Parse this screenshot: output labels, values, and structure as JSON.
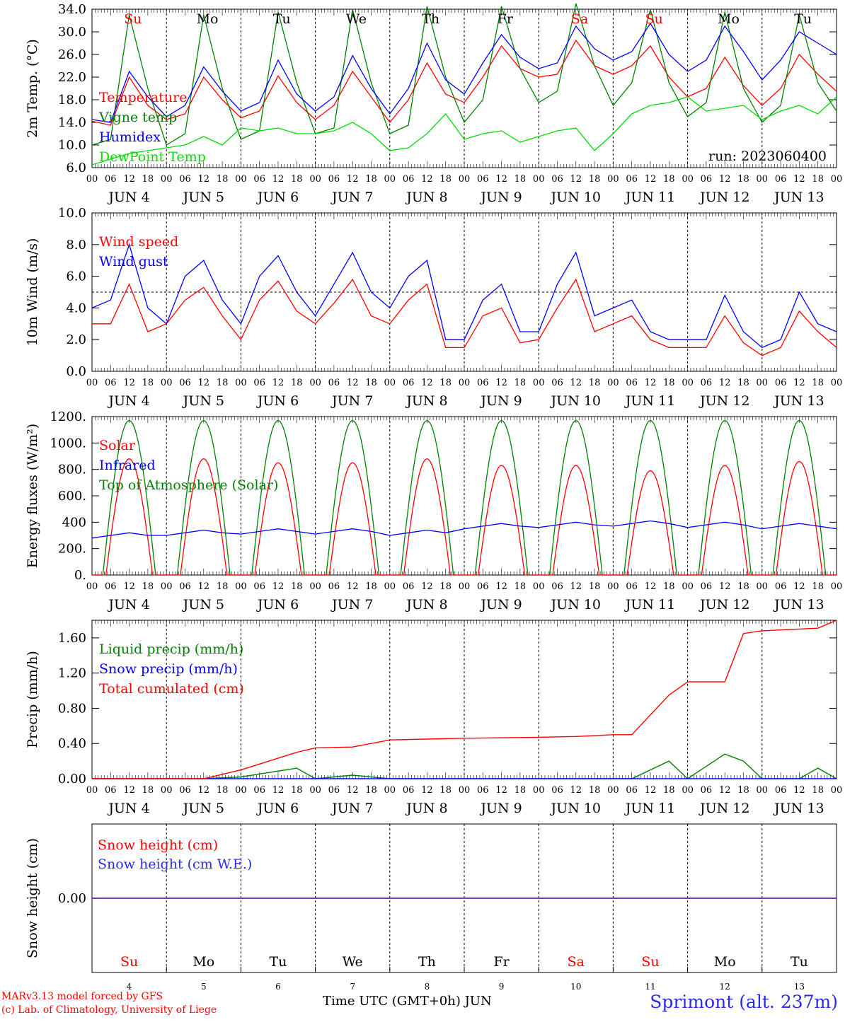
{
  "chart_data": [
    {
      "type": "line",
      "ylabel": "2m Temp. (°C)",
      "ylim": [
        6.0,
        34.0
      ],
      "yticks": [
        "6.0",
        "10.0",
        "14.0",
        "18.0",
        "22.0",
        "26.0",
        "30.0",
        "34.0"
      ],
      "x": [
        "2023-06-04T00",
        "2023-06-04T06",
        "2023-06-04T12",
        "2023-06-04T18",
        "2023-06-05T00",
        "2023-06-05T06",
        "2023-06-05T12",
        "2023-06-05T18",
        "2023-06-06T00",
        "2023-06-06T06",
        "2023-06-06T12",
        "2023-06-06T18",
        "2023-06-07T00",
        "2023-06-07T06",
        "2023-06-07T12",
        "2023-06-07T18",
        "2023-06-08T00",
        "2023-06-08T06",
        "2023-06-08T12",
        "2023-06-08T18",
        "2023-06-09T00",
        "2023-06-09T06",
        "2023-06-09T12",
        "2023-06-09T18",
        "2023-06-10T00",
        "2023-06-10T06",
        "2023-06-10T12",
        "2023-06-10T18",
        "2023-06-11T00",
        "2023-06-11T06",
        "2023-06-11T12",
        "2023-06-11T18",
        "2023-06-12T00",
        "2023-06-12T06",
        "2023-06-12T12",
        "2023-06-12T18",
        "2023-06-13T00",
        "2023-06-13T06",
        "2023-06-13T12",
        "2023-06-13T18",
        "2023-06-14T00"
      ],
      "annotation": "run: 2023060400",
      "series": [
        {
          "name": "Temperature",
          "color": "#ff0000",
          "values": [
            14.2,
            13.5,
            22.0,
            17.0,
            14.5,
            15.5,
            22.0,
            18.0,
            14.8,
            16.0,
            22.2,
            17.5,
            14.5,
            17.0,
            23.0,
            18.5,
            14.0,
            18.0,
            24.5,
            19.0,
            17.5,
            22.0,
            27.5,
            23.5,
            22.0,
            22.5,
            28.5,
            24.0,
            22.5,
            24.0,
            27.5,
            22.0,
            18.5,
            20.0,
            25.5,
            20.5,
            17.0,
            20.0,
            26.0,
            22.5,
            19.5
          ]
        },
        {
          "name": "Vigne temp",
          "color": "#008000",
          "values": [
            10.0,
            11.0,
            33.0,
            20.0,
            10.0,
            12.0,
            33.0,
            20.0,
            11.0,
            12.5,
            33.5,
            21.0,
            12.0,
            13.0,
            34.0,
            21.0,
            12.0,
            13.5,
            34.5,
            22.0,
            14.0,
            18.0,
            34.5,
            23.5,
            17.5,
            19.5,
            35.0,
            24.0,
            17.0,
            21.0,
            34.0,
            21.0,
            15.0,
            17.5,
            33.5,
            20.0,
            14.0,
            17.0,
            33.0,
            21.0,
            16.0
          ]
        },
        {
          "name": "Humidex",
          "color": "#0000ff",
          "values": [
            14.5,
            14.0,
            23.0,
            18.5,
            15.0,
            17.0,
            23.8,
            19.5,
            16.0,
            17.5,
            25.0,
            19.0,
            16.0,
            18.5,
            25.8,
            20.0,
            15.5,
            20.0,
            28.0,
            21.5,
            19.0,
            24.5,
            29.5,
            25.5,
            23.5,
            24.5,
            31.0,
            27.0,
            25.0,
            26.5,
            31.5,
            26.0,
            23.0,
            25.0,
            31.0,
            26.5,
            21.5,
            25.0,
            30.0,
            28.0,
            26.0
          ]
        },
        {
          "name": "DewPoint Temp",
          "color": "#00dd00",
          "values": [
            6.5,
            7.5,
            8.5,
            9.0,
            9.5,
            10.0,
            11.5,
            10.0,
            13.0,
            12.5,
            13.0,
            12.0,
            12.0,
            12.5,
            14.0,
            12.0,
            9.0,
            9.5,
            12.0,
            15.5,
            11.0,
            12.0,
            12.5,
            10.5,
            11.5,
            12.5,
            13.0,
            9.0,
            12.0,
            15.5,
            17.0,
            17.5,
            18.5,
            16.0,
            16.5,
            17.0,
            14.5,
            16.0,
            17.0,
            15.5,
            18.5
          ]
        }
      ]
    },
    {
      "type": "line",
      "ylabel": "10m Wind (m/s)",
      "ylim": [
        0.0,
        10.0
      ],
      "yticks": [
        "0.0",
        "2.0",
        "4.0",
        "6.0",
        "8.0",
        "10.0"
      ],
      "reference_line": 5.0,
      "x": [
        "2023-06-04T00",
        "2023-06-04T06",
        "2023-06-04T12",
        "2023-06-04T18",
        "2023-06-05T00",
        "2023-06-05T06",
        "2023-06-05T12",
        "2023-06-05T18",
        "2023-06-06T00",
        "2023-06-06T06",
        "2023-06-06T12",
        "2023-06-06T18",
        "2023-06-07T00",
        "2023-06-07T06",
        "2023-06-07T12",
        "2023-06-07T18",
        "2023-06-08T00",
        "2023-06-08T06",
        "2023-06-08T12",
        "2023-06-08T18",
        "2023-06-09T00",
        "2023-06-09T06",
        "2023-06-09T12",
        "2023-06-09T18",
        "2023-06-10T00",
        "2023-06-10T06",
        "2023-06-10T12",
        "2023-06-10T18",
        "2023-06-11T00",
        "2023-06-11T06",
        "2023-06-11T12",
        "2023-06-11T18",
        "2023-06-12T00",
        "2023-06-12T06",
        "2023-06-12T12",
        "2023-06-12T18",
        "2023-06-13T00",
        "2023-06-13T06",
        "2023-06-13T12",
        "2023-06-13T18",
        "2023-06-14T00"
      ],
      "series": [
        {
          "name": "Wind speed",
          "color": "#ff0000",
          "values": [
            3.0,
            3.0,
            5.5,
            2.5,
            3.0,
            4.5,
            5.3,
            3.5,
            2.0,
            4.5,
            5.7,
            3.8,
            3.0,
            4.3,
            5.8,
            3.5,
            3.0,
            4.5,
            5.5,
            1.5,
            1.5,
            3.5,
            4.0,
            1.8,
            2.0,
            4.0,
            5.8,
            2.5,
            3.0,
            3.5,
            2.0,
            1.5,
            1.5,
            1.5,
            3.5,
            1.8,
            1.0,
            1.5,
            3.8,
            2.5,
            1.5
          ]
        },
        {
          "name": "Wind gust",
          "color": "#0000ff",
          "values": [
            4.0,
            4.5,
            8.0,
            4.0,
            3.0,
            6.0,
            7.0,
            4.5,
            3.0,
            6.0,
            7.3,
            5.0,
            3.5,
            5.5,
            7.5,
            5.0,
            4.0,
            6.0,
            7.0,
            2.0,
            2.0,
            4.5,
            5.5,
            2.5,
            2.5,
            5.5,
            7.5,
            3.5,
            4.0,
            4.5,
            2.5,
            2.0,
            2.0,
            2.0,
            4.8,
            2.5,
            1.5,
            2.0,
            5.0,
            3.0,
            2.5
          ]
        }
      ]
    },
    {
      "type": "line",
      "ylabel": "Energy fluxes (W/m²)",
      "ylim": [
        0,
        1200
      ],
      "yticks": [
        "0.",
        "200.",
        "400",
        "600.",
        "800.",
        "1000.",
        "1200."
      ],
      "x": [
        "2023-06-04",
        "2023-06-05",
        "2023-06-06",
        "2023-06-07",
        "2023-06-08",
        "2023-06-09",
        "2023-06-10",
        "2023-06-11",
        "2023-06-12",
        "2023-06-13"
      ],
      "series": [
        {
          "name": "Solar",
          "color": "#ff0000",
          "values": [
            880,
            880,
            850,
            850,
            880,
            830,
            830,
            790,
            830,
            860
          ]
        },
        {
          "name": "Infrared",
          "color": "#0000ff",
          "values": [
            300,
            320,
            330,
            330,
            320,
            370,
            380,
            390,
            380,
            370
          ]
        },
        {
          "name": "Top of Atmosphere (Solar)",
          "color": "#008000",
          "values": [
            1170,
            1170,
            1170,
            1170,
            1170,
            1170,
            1170,
            1170,
            1170,
            1170
          ]
        }
      ]
    },
    {
      "type": "line",
      "ylabel": "Precip (mm/h)",
      "ylim": [
        0.0,
        1.8
      ],
      "yticks": [
        "0.00",
        "0.40",
        "0.80",
        "1.20",
        "1.60"
      ],
      "x": [
        "2023-06-04T00",
        "2023-06-05T00",
        "2023-06-05T12",
        "2023-06-06T00",
        "2023-06-06T18",
        "2023-06-07T00",
        "2023-06-07T12",
        "2023-06-08T00",
        "2023-06-09T00",
        "2023-06-10T00",
        "2023-06-10T12",
        "2023-06-11T00",
        "2023-06-11T06",
        "2023-06-11T18",
        "2023-06-12T00",
        "2023-06-12T12",
        "2023-06-12T18",
        "2023-06-13T00",
        "2023-06-13T12",
        "2023-06-13T18",
        "2023-06-14T00"
      ],
      "series": [
        {
          "name": "Liquid precip (mm/h)",
          "color": "#008000",
          "values": [
            0.0,
            0.0,
            0.0,
            0.02,
            0.12,
            0.0,
            0.04,
            0.0,
            0.0,
            0.0,
            0.0,
            0.0,
            0.0,
            0.2,
            0.0,
            0.28,
            0.2,
            0.0,
            0.0,
            0.12,
            0.0
          ]
        },
        {
          "name": "Snow precip (mm/h)",
          "color": "#0000ff",
          "values": [
            0,
            0,
            0,
            0,
            0,
            0,
            0,
            0,
            0,
            0,
            0,
            0,
            0,
            0,
            0,
            0,
            0,
            0,
            0,
            0,
            0
          ]
        },
        {
          "name": "Total cumulated (cm)",
          "color": "#ff0000",
          "values": [
            0.0,
            0.0,
            0.0,
            0.1,
            0.3,
            0.35,
            0.36,
            0.44,
            0.46,
            0.47,
            0.48,
            0.5,
            0.5,
            0.95,
            1.1,
            1.1,
            1.65,
            1.68,
            1.7,
            1.71,
            1.8
          ]
        }
      ]
    },
    {
      "type": "line",
      "ylabel": "Snow height (cm)",
      "yticks": [
        "0.00"
      ],
      "x": [
        "2023-06-04",
        "2023-06-14"
      ],
      "series": [
        {
          "name": "Snow height (cm)",
          "color": "#ff0000",
          "values": [
            0,
            0
          ]
        },
        {
          "name": "Snow height (cm W.E.)",
          "color": "#0000ff",
          "values": [
            0,
            0
          ]
        }
      ]
    }
  ],
  "hour_ticks": [
    "00",
    "06",
    "12",
    "18"
  ],
  "days": [
    {
      "dayname": "Su",
      "date": "JUN  4",
      "num": "4",
      "weekend": true
    },
    {
      "dayname": "Mo",
      "date": "JUN  5",
      "num": "5",
      "weekend": false
    },
    {
      "dayname": "Tu",
      "date": "JUN  6",
      "num": "6",
      "weekend": false
    },
    {
      "dayname": "We",
      "date": "JUN  7",
      "num": "7",
      "weekend": false
    },
    {
      "dayname": "Th",
      "date": "JUN  8",
      "num": "8",
      "weekend": false
    },
    {
      "dayname": "Fr",
      "date": "JUN  9",
      "num": "9",
      "weekend": false
    },
    {
      "dayname": "Sa",
      "date": "JUN 10",
      "num": "10",
      "weekend": true
    },
    {
      "dayname": "Su",
      "date": "JUN 11",
      "num": "11",
      "weekend": true
    },
    {
      "dayname": "Mo",
      "date": "JUN 12",
      "num": "12",
      "weekend": false
    },
    {
      "dayname": "Tu",
      "date": "JUN 13",
      "num": "13",
      "weekend": false
    }
  ],
  "footer": {
    "model_line": "MARv3.13 model forced by GFS",
    "copyright_line": "(c) Lab. of Climatology, University of Liege",
    "xlabel": "Time UTC (GMT+0h) JUN",
    "station": "Sprimont (alt. 237m)"
  }
}
